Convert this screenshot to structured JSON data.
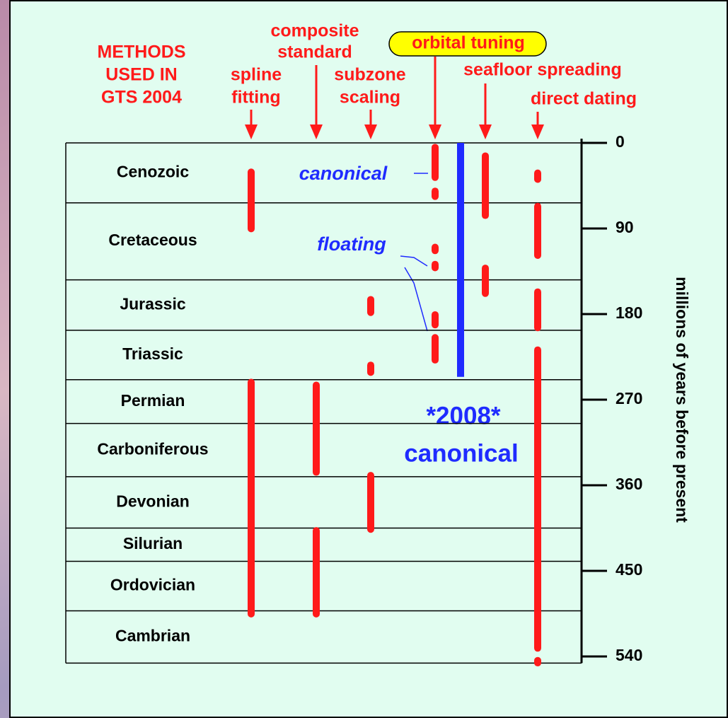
{
  "title": [
    "METHODS",
    "USED IN",
    "GTS 2004"
  ],
  "methods": [
    {
      "label": [
        "spline",
        "fitting"
      ],
      "bars": [
        [
          27,
          94
        ],
        [
          248,
          499
        ]
      ]
    },
    {
      "label": [
        "composite",
        "standard"
      ],
      "bars": [
        [
          251,
          350
        ],
        [
          404,
          499
        ]
      ]
    },
    {
      "label": [
        "subzone",
        "scaling"
      ],
      "bars": [
        [
          161,
          182
        ],
        [
          230,
          245
        ],
        [
          346,
          410
        ]
      ]
    },
    {
      "label": [
        "orbital tuning"
      ],
      "highlight": true,
      "bars": [
        [
          1,
          40
        ],
        [
          47,
          60
        ],
        [
          106,
          117
        ],
        [
          124,
          135
        ],
        [
          177,
          195
        ],
        [
          201,
          232
        ]
      ]
    },
    {
      "label": [
        "seafloor spreading"
      ],
      "bars": [
        [
          10,
          80
        ],
        [
          128,
          162
        ]
      ]
    },
    {
      "label": [
        "direct dating"
      ],
      "bars": [
        [
          28,
          42
        ],
        [
          63,
          122
        ],
        [
          153,
          198
        ],
        [
          214,
          535
        ],
        [
          543,
          548
        ]
      ]
    }
  ],
  "periods": [
    "Cenozoic",
    "Cretaceous",
    "Jurassic",
    "Triassic",
    "Permian",
    "Carboniferous",
    "Devonian",
    "Silurian",
    "Ordovician",
    "Cambrian"
  ],
  "boundaries": [
    0,
    63,
    144,
    197,
    249,
    295,
    351,
    405,
    440,
    492,
    547
  ],
  "axis": {
    "label": "millions of years before present",
    "ylim": [
      0,
      540
    ],
    "ticks": [
      0,
      90,
      180,
      270,
      360,
      450,
      540
    ]
  },
  "canonical_bar": [
    0,
    246
  ],
  "annotations": {
    "canonical": "canonical",
    "floating": "floating",
    "new_line1": "*2008*",
    "new_line2": "canonical"
  }
}
